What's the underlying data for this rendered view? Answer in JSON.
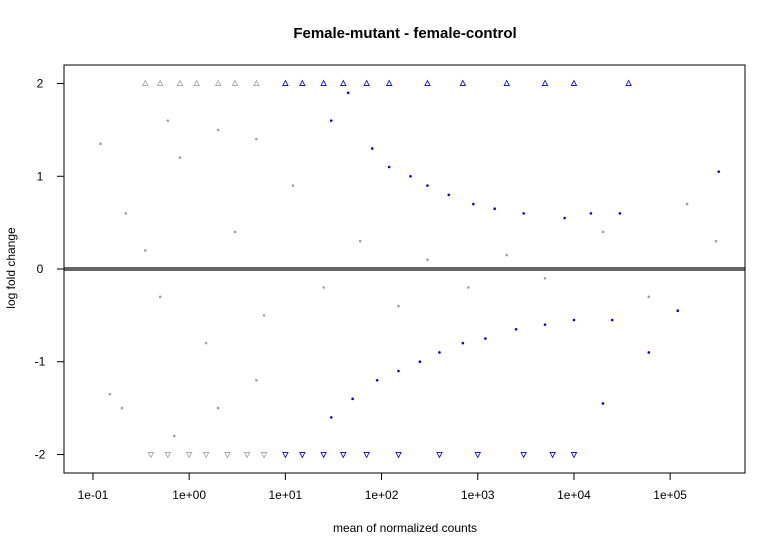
{
  "chart_data": {
    "type": "scatter",
    "title": "Female-mutant - female-control",
    "xlabel": "mean of normalized counts",
    "ylabel": "log fold change",
    "x_scale": "log10",
    "xlim": [
      0.05,
      600000
    ],
    "ylim": [
      -2.2,
      2.2
    ],
    "x_ticks": [
      0.1,
      1,
      10,
      100,
      1000,
      10000,
      100000
    ],
    "x_tick_labels": [
      "1e-01",
      "1e+00",
      "1e+01",
      "1e+02",
      "1e+03",
      "1e+04",
      "1e+05"
    ],
    "y_ticks": [
      -2,
      -1,
      0,
      1,
      2
    ],
    "y_tick_labels": [
      "-2",
      "-1",
      "0",
      "1",
      "2"
    ],
    "reference_line": 0,
    "grid": false,
    "legend": "none",
    "colors": {
      "not_significant": "#a0a0a0",
      "significant": "#0000e0",
      "reference_line": "#666666",
      "axis": "#000000"
    },
    "series": [
      {
        "marker": "dot",
        "color": "#a0a0a0",
        "points": [
          [
            0.35,
            0.2
          ],
          [
            0.5,
            -0.3
          ],
          [
            0.8,
            1.2
          ],
          [
            1.5,
            -0.8
          ],
          [
            3,
            0.4
          ],
          [
            6,
            -0.5
          ],
          [
            12,
            0.9
          ],
          [
            25,
            -0.2
          ],
          [
            60,
            0.3
          ],
          [
            150,
            -0.4
          ],
          [
            300,
            0.1
          ],
          [
            800,
            -0.2
          ],
          [
            2000,
            0.15
          ],
          [
            5000,
            -0.1
          ],
          [
            20000,
            0.4
          ],
          [
            60000,
            -0.3
          ],
          [
            150000,
            0.7
          ],
          [
            300000,
            0.3
          ],
          [
            0.15,
            -1.35
          ],
          [
            0.2,
            -1.5
          ],
          [
            0.22,
            0.6
          ],
          [
            0.12,
            1.35
          ],
          [
            0.7,
            -1.8
          ],
          [
            0.6,
            1.6
          ],
          [
            2,
            -1.5
          ],
          [
            2,
            1.5
          ],
          [
            5,
            -1.2
          ],
          [
            5,
            1.4
          ]
        ]
      },
      {
        "marker": "dot",
        "color": "#0000e0",
        "points": [
          [
            30,
            1.6
          ],
          [
            45,
            1.9
          ],
          [
            80,
            1.3
          ],
          [
            120,
            1.1
          ],
          [
            200,
            1.0
          ],
          [
            300,
            0.9
          ],
          [
            500,
            0.8
          ],
          [
            900,
            0.7
          ],
          [
            1500,
            0.65
          ],
          [
            3000,
            0.6
          ],
          [
            8000,
            0.55
          ],
          [
            15000,
            0.6
          ],
          [
            30000,
            0.6
          ],
          [
            320000,
            1.05
          ],
          [
            30,
            -1.6
          ],
          [
            50,
            -1.4
          ],
          [
            90,
            -1.2
          ],
          [
            150,
            -1.1
          ],
          [
            250,
            -1.0
          ],
          [
            400,
            -0.9
          ],
          [
            700,
            -0.8
          ],
          [
            1200,
            -0.75
          ],
          [
            2500,
            -0.65
          ],
          [
            5000,
            -0.6
          ],
          [
            10000,
            -0.55
          ],
          [
            25000,
            -0.55
          ],
          [
            60000,
            -0.9
          ],
          [
            120000,
            -0.45
          ],
          [
            20000,
            -1.45
          ]
        ]
      },
      {
        "marker": "triangle-up",
        "color": "#a0a0a0",
        "points": [
          [
            0.35,
            2
          ],
          [
            0.5,
            2
          ],
          [
            0.8,
            2
          ],
          [
            1.2,
            2
          ],
          [
            2,
            2
          ],
          [
            3,
            2
          ],
          [
            5,
            2
          ]
        ]
      },
      {
        "marker": "triangle-up",
        "color": "#0000e0",
        "points": [
          [
            10,
            2
          ],
          [
            15,
            2
          ],
          [
            25,
            2
          ],
          [
            40,
            2
          ],
          [
            70,
            2
          ],
          [
            120,
            2
          ],
          [
            300,
            2
          ],
          [
            700,
            2
          ],
          [
            2000,
            2
          ],
          [
            5000,
            2
          ],
          [
            10000,
            2
          ],
          [
            37000,
            2
          ]
        ]
      },
      {
        "marker": "triangle-down",
        "color": "#a0a0a0",
        "points": [
          [
            0.4,
            -2
          ],
          [
            0.6,
            -2
          ],
          [
            1,
            -2
          ],
          [
            1.5,
            -2
          ],
          [
            2.5,
            -2
          ],
          [
            4,
            -2
          ],
          [
            6,
            -2
          ]
        ]
      },
      {
        "marker": "triangle-down",
        "color": "#0000e0",
        "points": [
          [
            10,
            -2
          ],
          [
            15,
            -2
          ],
          [
            25,
            -2
          ],
          [
            40,
            -2
          ],
          [
            70,
            -2
          ],
          [
            150,
            -2
          ],
          [
            400,
            -2
          ],
          [
            1000,
            -2
          ],
          [
            3000,
            -2
          ],
          [
            6000,
            -2
          ],
          [
            10000,
            -2
          ]
        ]
      }
    ]
  }
}
